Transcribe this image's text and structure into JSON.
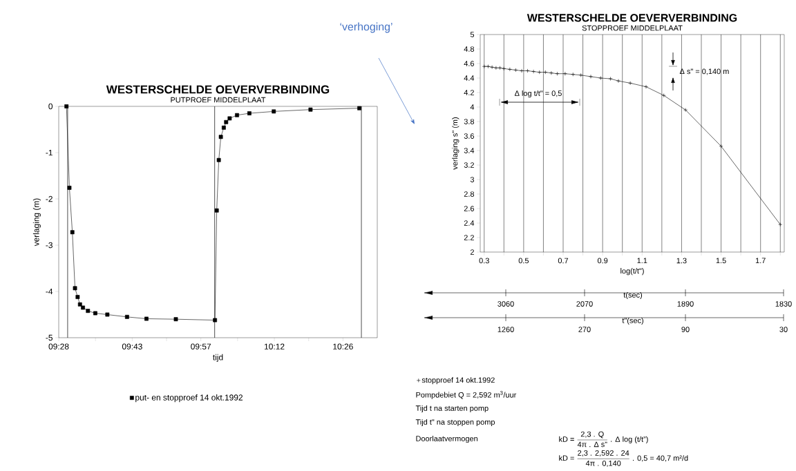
{
  "chart_data": [
    {
      "type": "line",
      "title": "WESTERSCHELDE OEVERVERBINDING",
      "subtitle": "PUTPROEF MIDDELPLAAT",
      "xlabel": "tijd",
      "ylabel": "verlaging (m)",
      "x": [
        9.493,
        9.503,
        9.513,
        9.522,
        9.531,
        9.539,
        9.549,
        9.566,
        9.591,
        9.632,
        9.699,
        9.765,
        9.865,
        9.998,
        10.004,
        10.011,
        10.018,
        10.028,
        10.036,
        10.048,
        10.073,
        10.115,
        10.198,
        10.323,
        10.489
      ],
      "series": [
        {
          "name": "put- en stopproef 14 okt.1992",
          "color": "#000000",
          "values": [
            0,
            -1.76,
            -2.72,
            -3.93,
            -4.12,
            -4.28,
            -4.35,
            -4.42,
            -4.47,
            -4.5,
            -4.55,
            -4.59,
            -4.6,
            -4.62,
            -2.25,
            -1.16,
            -0.66,
            -0.46,
            -0.34,
            -0.26,
            -0.19,
            -0.15,
            -0.11,
            -0.07,
            -0.04
          ]
        }
      ],
      "xlim": [
        9.4667,
        10.55
      ],
      "ylim": [
        -5,
        0
      ],
      "xticks": [
        {
          "value": 9.4667,
          "label": "09:28"
        },
        {
          "value": 9.5917,
          "label": null
        },
        {
          "value": 9.7167,
          "label": "09:43"
        },
        {
          "value": 9.8333,
          "label": null
        },
        {
          "value": 9.95,
          "label": "09:57"
        },
        {
          "value": 10.075,
          "label": null
        },
        {
          "value": 10.2,
          "label": "10:12"
        },
        {
          "value": 10.3167,
          "label": null
        },
        {
          "value": 10.4333,
          "label": "10:26"
        }
      ],
      "yticks": [
        -5,
        -4,
        -3,
        -2,
        -1,
        0
      ],
      "ref_lines": [
        {
          "axis": "x",
          "value": 9.497
        },
        {
          "axis": "x",
          "value": 9.997
        },
        {
          "axis": "x",
          "value": 10.496
        }
      ],
      "marker": "square",
      "line_style": "solid",
      "legend": "bottom"
    },
    {
      "type": "line",
      "title": "WESTERSCHELDE OEVERVERBINDING",
      "subtitle": "STOPPROEF MIDDELPLAAT",
      "xlabel": "log(t/t\")",
      "ylabel": "verlaging s\" (m)",
      "x": [
        0.3,
        0.32,
        0.34,
        0.36,
        0.38,
        0.4,
        0.43,
        0.46,
        0.49,
        0.52,
        0.55,
        0.58,
        0.61,
        0.64,
        0.67,
        0.71,
        0.75,
        0.79,
        0.84,
        0.89,
        0.94,
        0.98,
        1.04,
        1.12,
        1.21,
        1.32,
        1.5,
        1.8
      ],
      "series": [
        {
          "name": "stopproef 14 okt.1992",
          "color": "#000000",
          "values": [
            4.56,
            4.56,
            4.55,
            4.54,
            4.54,
            4.53,
            4.52,
            4.51,
            4.5,
            4.5,
            4.49,
            4.48,
            4.48,
            4.47,
            4.46,
            4.46,
            4.45,
            4.44,
            4.42,
            4.4,
            4.39,
            4.36,
            4.33,
            4.28,
            4.16,
            3.96,
            3.46,
            2.38
          ]
        }
      ],
      "xlim": [
        0.28,
        1.82
      ],
      "ylim": [
        2,
        5
      ],
      "xticks": [
        0.3,
        {
          "value": 0.4,
          "label": null
        },
        0.5,
        {
          "value": 0.6,
          "label": null
        },
        0.7,
        {
          "value": 0.8,
          "label": null
        },
        0.9,
        {
          "value": 1.0,
          "label": null
        },
        1.1,
        {
          "value": 1.2,
          "label": null
        },
        1.3,
        {
          "value": 1.4,
          "label": null
        },
        1.5,
        {
          "value": 1.6,
          "label": null
        },
        1.7,
        {
          "value": 1.8,
          "label": null
        }
      ],
      "yticks": [
        2,
        2.2,
        2.4,
        2.6,
        2.8,
        3,
        3.2,
        3.4,
        3.6,
        3.8,
        4,
        4.2,
        4.4,
        4.6,
        4.8,
        5
      ],
      "grid": "x",
      "marker": "cross",
      "line_style": "solid",
      "legend": "bottom",
      "annotations": [
        "Δ log t/t\" = 0,5",
        "Δ s\" = 0,140 m",
        "Pompdebiet  Q = 2,592 m$^{3}$/uur",
        "Tijd t na starten pomp",
        "Tijd t\" na stoppen pomp",
        "Doorlaatvermogen",
        "\\text{kD = }\\frac{\\text{2,3 . Q}}{\\text{4π . Δ s\"}}\\text{ . Δ  log (t/t\")}",
        "\\text{kD = }\\frac{\\text{2,3 . 2,592 . 24}}{\\text{4π . 0,140}}\\text{ . 0,5 = 40,7 m²/d}",
        "‘verhoging’",
        "t(sec)",
        "3060",
        "2070",
        "1890",
        "1830",
        "t\"(sec)",
        "1260",
        "270",
        "90",
        "30"
      ]
    }
  ]
}
